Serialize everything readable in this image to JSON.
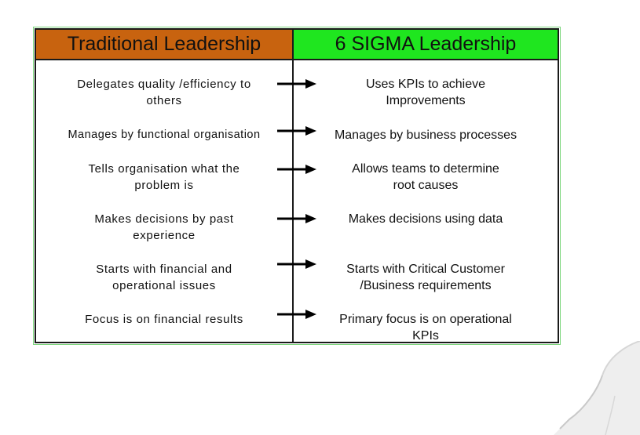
{
  "headers": {
    "left": "Traditional Leadership",
    "right": "6 SIGMA Leadership"
  },
  "colors": {
    "left_header": "#c8630f",
    "right_header": "#1fe61f",
    "border": "#1a1a1a"
  },
  "rows": [
    {
      "traditional": [
        "Delegates quality /efficiency to",
        "others"
      ],
      "six_sigma": [
        "Uses KPIs to achieve",
        "Improvements"
      ]
    },
    {
      "traditional": [
        "Manages by functional organisation"
      ],
      "six_sigma": [
        "Manages by business processes"
      ]
    },
    {
      "traditional": [
        "Tells organisation what the",
        "problem is"
      ],
      "six_sigma": [
        "Allows teams to determine",
        "root causes"
      ]
    },
    {
      "traditional": [
        "Makes decisions by past",
        "experience"
      ],
      "six_sigma": [
        "Makes decisions using data"
      ]
    },
    {
      "traditional": [
        "Starts with financial and",
        "operational issues"
      ],
      "six_sigma": [
        "Starts with Critical Customer",
        "/Business requirements"
      ]
    },
    {
      "traditional": [
        "Focus is on financial results"
      ],
      "six_sigma": [
        "Primary focus is on operational",
        "KPIs"
      ]
    }
  ],
  "presenter": {
    "icon": "presenter-shoulder"
  }
}
